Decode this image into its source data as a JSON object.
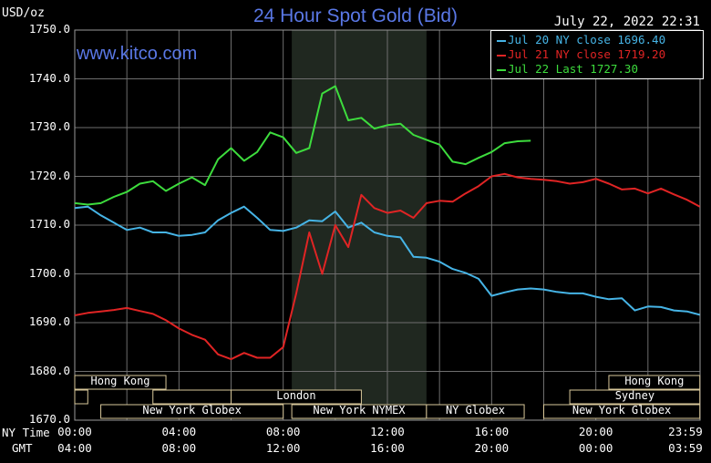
{
  "header": {
    "title": "24 Hour Spot Gold (Bid)",
    "unit": "USD/oz",
    "datetime": "July 22, 2022 22:31",
    "website": "www.kitco.com"
  },
  "legend": [
    {
      "label": "Jul 20 NY close 1696.40",
      "color": "#46b4e6"
    },
    {
      "label": "Jul 21 NY close 1719.20",
      "color": "#e02424"
    },
    {
      "label": "Jul 22 Last 1727.30",
      "color": "#3ddc3d"
    }
  ],
  "markets": [
    {
      "label": "Hong Kong",
      "row": 0,
      "start": 0,
      "end": 3.5
    },
    {
      "label": "Hong Kong",
      "row": 0,
      "start": 20.5,
      "end": 23.99
    },
    {
      "label": "",
      "row": 1,
      "start": 0,
      "end": 0.5
    },
    {
      "label": "",
      "row": 1,
      "start": 3,
      "end": 6
    },
    {
      "label": "London",
      "row": 1,
      "start": 6,
      "end": 11
    },
    {
      "label": "Sydney",
      "row": 1,
      "start": 19,
      "end": 23.99
    },
    {
      "label": "New York Globex",
      "row": 2,
      "start": 1,
      "end": 8
    },
    {
      "label": "New York NYMEX",
      "row": 2,
      "start": 8.33,
      "end": 13.5
    },
    {
      "label": "NY Globex",
      "row": 2,
      "start": 13.5,
      "end": 17.25
    },
    {
      "label": "New York Globex",
      "row": 2,
      "start": 18,
      "end": 23.99
    }
  ],
  "nymex_session": {
    "start": 8.33,
    "end": 13.5
  },
  "x_axis": {
    "row1_label": "NY Time",
    "row2_label": "GMT",
    "ny_ticks": [
      "00:00",
      "04:00",
      "08:00",
      "12:00",
      "16:00",
      "20:00",
      "23:59"
    ],
    "gmt_ticks": [
      "04:00",
      "08:00",
      "12:00",
      "16:00",
      "20:00",
      "00:00",
      "03:59"
    ]
  },
  "chart_data": {
    "type": "line",
    "title": "24 Hour Spot Gold (Bid)",
    "ylabel": "USD/oz",
    "xlabel": "NY Time",
    "ylim": [
      1670,
      1750
    ],
    "xlim": [
      0,
      24
    ],
    "y_ticks": [
      "1670.0",
      "1680.0",
      "1690.0",
      "1700.0",
      "1710.0",
      "1720.0",
      "1730.0",
      "1740.0",
      "1750.0"
    ],
    "grid": true,
    "legend_position": "top-right",
    "series": [
      {
        "name": "Jul 20 NY close 1696.40",
        "color": "#46b4e6",
        "x": [
          0,
          0.5,
          1,
          1.5,
          2,
          2.5,
          3,
          3.5,
          4,
          4.5,
          5,
          5.5,
          6,
          6.5,
          7,
          7.5,
          8,
          8.5,
          9,
          9.5,
          10,
          10.5,
          11,
          11.5,
          12,
          12.5,
          13,
          13.5,
          14,
          14.5,
          15,
          15.5,
          16,
          16.5,
          17,
          17.5,
          18,
          18.5,
          19,
          19.5,
          20,
          20.5,
          21,
          21.5,
          22,
          22.5,
          23,
          23.5,
          23.99
        ],
        "y": [
          1713.5,
          1713.8,
          1712,
          1710.5,
          1709,
          1709.5,
          1708.5,
          1708.5,
          1707.8,
          1708,
          1708.5,
          1711,
          1712.5,
          1713.8,
          1711.5,
          1709,
          1708.8,
          1709.5,
          1711,
          1710.8,
          1712.8,
          1709.5,
          1710.5,
          1708.5,
          1707.8,
          1707.5,
          1703.5,
          1703.3,
          1702.5,
          1701,
          1700.2,
          1699,
          1695.5,
          1696.2,
          1696.8,
          1697,
          1696.8,
          1696.3,
          1696,
          1696,
          1695.3,
          1694.8,
          1695,
          1692.5,
          1693.3,
          1693.2,
          1692.5,
          1692.3,
          1691.6
        ]
      },
      {
        "name": "Jul 21 NY close 1719.20",
        "color": "#e02424",
        "x": [
          0,
          0.5,
          1,
          1.5,
          2,
          2.5,
          3,
          3.5,
          4,
          4.5,
          5,
          5.5,
          6,
          6.5,
          7,
          7.5,
          8,
          8.5,
          9,
          9.5,
          10,
          10.5,
          11,
          11.5,
          12,
          12.5,
          13,
          13.5,
          14,
          14.5,
          15,
          15.5,
          16,
          16.5,
          17,
          17.5,
          18,
          18.5,
          19,
          19.5,
          20,
          20.5,
          21,
          21.5,
          22,
          22.5,
          23,
          23.5,
          23.99
        ],
        "y": [
          1691.5,
          1692,
          1692.3,
          1692.6,
          1693,
          1692.4,
          1691.8,
          1690.5,
          1688.8,
          1687.5,
          1686.5,
          1683.5,
          1682.5,
          1683.8,
          1682.8,
          1682.8,
          1685,
          1696,
          1708.5,
          1700,
          1710,
          1705.5,
          1716.2,
          1713.5,
          1712.5,
          1713,
          1711.5,
          1714.5,
          1715,
          1714.8,
          1716.5,
          1718,
          1720,
          1720.5,
          1719.8,
          1719.5,
          1719.3,
          1719,
          1718.5,
          1718.8,
          1719.5,
          1718.5,
          1717.3,
          1717.5,
          1716.5,
          1717.5,
          1716.3,
          1715.2,
          1713.8
        ]
      },
      {
        "name": "Jul 22 Last 1727.30",
        "color": "#3ddc3d",
        "x": [
          0,
          0.5,
          1,
          1.5,
          2,
          2.5,
          3,
          3.5,
          4,
          4.5,
          5,
          5.5,
          6,
          6.5,
          7,
          7.5,
          8,
          8.5,
          9,
          9.5,
          10,
          10.5,
          11,
          11.5,
          12,
          12.5,
          13,
          13.5,
          14,
          14.5,
          15,
          15.5,
          16,
          16.5,
          17,
          17.5
        ],
        "y": [
          1714.5,
          1714.2,
          1714.5,
          1715.8,
          1716.8,
          1718.5,
          1719,
          1717,
          1718.5,
          1719.8,
          1718.2,
          1723.5,
          1725.8,
          1723.2,
          1725,
          1729,
          1728,
          1724.8,
          1725.8,
          1737,
          1738.5,
          1731.5,
          1732,
          1729.8,
          1730.5,
          1730.8,
          1728.5,
          1727.5,
          1726.5,
          1723,
          1722.5,
          1723.8,
          1725,
          1726.8,
          1727.2,
          1727.3
        ]
      }
    ]
  }
}
